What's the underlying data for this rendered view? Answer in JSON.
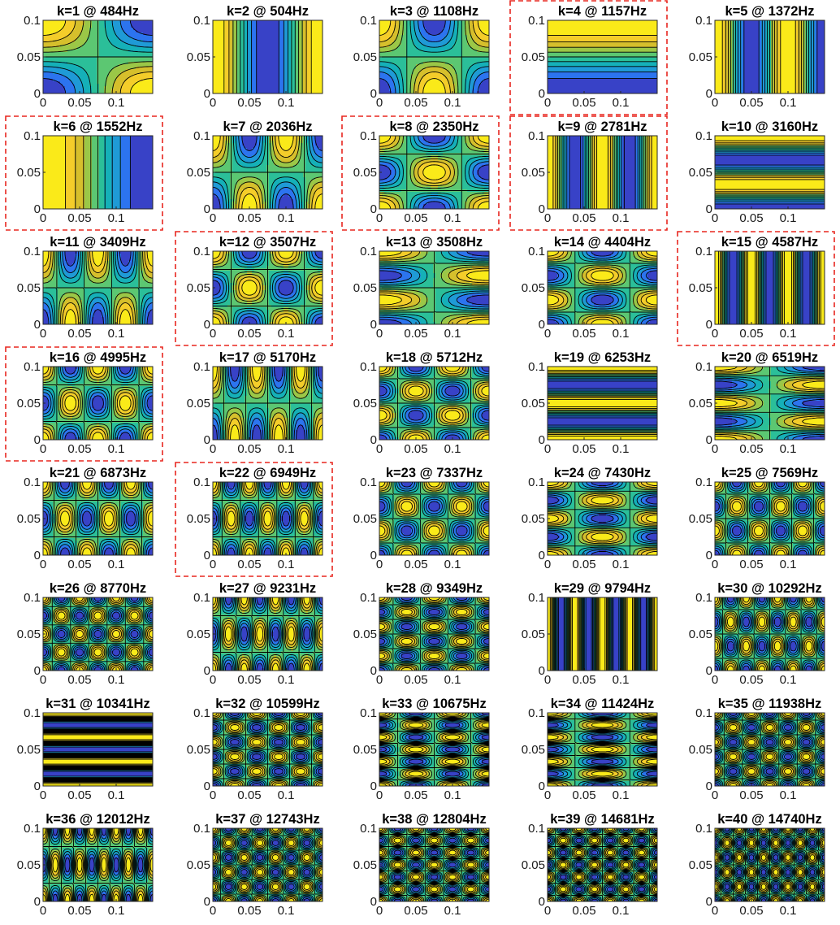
{
  "figure": {
    "colormap": [
      "#3e26a8",
      "#2f6bf5",
      "#1f9ad6",
      "#12b6b0",
      "#3cc58a",
      "#8cc94e",
      "#d6bf2c",
      "#fbd02a",
      "#f9fb0e"
    ],
    "highlight_color": "#e8261f",
    "contour_line_color": "#000000"
  },
  "chart_data": [
    {
      "type": "heatmap",
      "title": "k=1 @ 484Hz",
      "k": 1,
      "freq_hz": 484,
      "highlighted": false,
      "xlim": [
        0,
        0.15
      ],
      "ylim": [
        0,
        0.1
      ],
      "x_ticks": [
        "0",
        "0.05",
        "0.1"
      ],
      "y_ticks": [
        "0",
        "0.05",
        "0.1"
      ],
      "mode": [
        1,
        1
      ]
    },
    {
      "type": "heatmap",
      "title": "k=2 @ 504Hz",
      "k": 2,
      "freq_hz": 504,
      "highlighted": false,
      "xlim": [
        0,
        0.15
      ],
      "ylim": [
        0,
        0.1
      ],
      "x_ticks": [
        "0",
        "0.05",
        "0.1"
      ],
      "y_ticks": [
        "0",
        "0.05",
        "0.1"
      ],
      "mode": [
        2,
        0
      ]
    },
    {
      "type": "heatmap",
      "title": "k=3 @ 1108Hz",
      "k": 3,
      "freq_hz": 1108,
      "highlighted": false,
      "xlim": [
        0,
        0.15
      ],
      "ylim": [
        0,
        0.1
      ],
      "x_ticks": [
        "0",
        "0.05",
        "0.1"
      ],
      "y_ticks": [
        "0",
        "0.05",
        "0.1"
      ],
      "mode": [
        2,
        1
      ]
    },
    {
      "type": "heatmap",
      "title": "k=4 @ 1157Hz",
      "k": 4,
      "freq_hz": 1157,
      "highlighted": true,
      "xlim": [
        0,
        0.15
      ],
      "ylim": [
        0,
        0.1
      ],
      "x_ticks": [
        "0",
        "0.05",
        "0.1"
      ],
      "y_ticks": [
        "0",
        "0.05",
        "0.1"
      ],
      "mode": [
        0,
        1
      ]
    },
    {
      "type": "heatmap",
      "title": "k=5 @ 1372Hz",
      "k": 5,
      "freq_hz": 1372,
      "highlighted": false,
      "xlim": [
        0,
        0.15
      ],
      "ylim": [
        0,
        0.1
      ],
      "x_ticks": [
        "0",
        "0.05",
        "0.1"
      ],
      "y_ticks": [
        "0",
        "0.05",
        "0.1"
      ],
      "mode": [
        3,
        0
      ]
    },
    {
      "type": "heatmap",
      "title": "k=6 @ 1552Hz",
      "k": 6,
      "freq_hz": 1552,
      "highlighted": true,
      "xlim": [
        0,
        0.15
      ],
      "ylim": [
        0,
        0.1
      ],
      "x_ticks": [
        "0",
        "0.05",
        "0.1"
      ],
      "y_ticks": [
        "0",
        "0.05",
        "0.1"
      ],
      "mode": [
        1,
        0
      ]
    },
    {
      "type": "heatmap",
      "title": "k=7 @ 2036Hz",
      "k": 7,
      "freq_hz": 2036,
      "highlighted": false,
      "xlim": [
        0,
        0.15
      ],
      "ylim": [
        0,
        0.1
      ],
      "x_ticks": [
        "0",
        "0.05",
        "0.1"
      ],
      "y_ticks": [
        "0",
        "0.05",
        "0.1"
      ],
      "mode": [
        3,
        1
      ]
    },
    {
      "type": "heatmap",
      "title": "k=8 @ 2350Hz",
      "k": 8,
      "freq_hz": 2350,
      "highlighted": true,
      "xlim": [
        0,
        0.15
      ],
      "ylim": [
        0,
        0.1
      ],
      "x_ticks": [
        "0",
        "0.05",
        "0.1"
      ],
      "y_ticks": [
        "0",
        "0.05",
        "0.1"
      ],
      "mode": [
        2,
        2
      ]
    },
    {
      "type": "heatmap",
      "title": "k=9 @ 2781Hz",
      "k": 9,
      "freq_hz": 2781,
      "highlighted": true,
      "xlim": [
        0,
        0.15
      ],
      "ylim": [
        0,
        0.1
      ],
      "x_ticks": [
        "0",
        "0.05",
        "0.1"
      ],
      "y_ticks": [
        "0",
        "0.05",
        "0.1"
      ],
      "mode": [
        4,
        0
      ]
    },
    {
      "type": "heatmap",
      "title": "k=10 @ 3160Hz",
      "k": 10,
      "freq_hz": 3160,
      "highlighted": false,
      "xlim": [
        0,
        0.15
      ],
      "ylim": [
        0,
        0.1
      ],
      "x_ticks": [
        "0",
        "0.05",
        "0.1"
      ],
      "y_ticks": [
        "0",
        "0.05",
        "0.1"
      ],
      "mode": [
        0,
        3
      ]
    },
    {
      "type": "heatmap",
      "title": "k=11 @ 3409Hz",
      "k": 11,
      "freq_hz": 3409,
      "highlighted": false,
      "xlim": [
        0,
        0.15
      ],
      "ylim": [
        0,
        0.1
      ],
      "x_ticks": [
        "0",
        "0.05",
        "0.1"
      ],
      "y_ticks": [
        "0",
        "0.05",
        "0.1"
      ],
      "mode": [
        4,
        1
      ]
    },
    {
      "type": "heatmap",
      "title": "k=12 @ 3507Hz",
      "k": 12,
      "freq_hz": 3507,
      "highlighted": true,
      "xlim": [
        0,
        0.15
      ],
      "ylim": [
        0,
        0.1
      ],
      "x_ticks": [
        "0",
        "0.05",
        "0.1"
      ],
      "y_ticks": [
        "0",
        "0.05",
        "0.1"
      ],
      "mode": [
        3,
        2
      ]
    },
    {
      "type": "heatmap",
      "title": "k=13 @ 3508Hz",
      "k": 13,
      "freq_hz": 3508,
      "highlighted": false,
      "xlim": [
        0,
        0.15
      ],
      "ylim": [
        0,
        0.1
      ],
      "x_ticks": [
        "0",
        "0.05",
        "0.1"
      ],
      "y_ticks": [
        "0",
        "0.05",
        "0.1"
      ],
      "mode": [
        1,
        3
      ]
    },
    {
      "type": "heatmap",
      "title": "k=14 @ 4404Hz",
      "k": 14,
      "freq_hz": 4404,
      "highlighted": false,
      "xlim": [
        0,
        0.15
      ],
      "ylim": [
        0,
        0.1
      ],
      "x_ticks": [
        "0",
        "0.05",
        "0.1"
      ],
      "y_ticks": [
        "0",
        "0.05",
        "0.1"
      ],
      "mode": [
        2,
        3
      ]
    },
    {
      "type": "heatmap",
      "title": "k=15 @ 4587Hz",
      "k": 15,
      "freq_hz": 4587,
      "highlighted": true,
      "xlim": [
        0,
        0.15
      ],
      "ylim": [
        0,
        0.1
      ],
      "x_ticks": [
        "0",
        "0.05",
        "0.1"
      ],
      "y_ticks": [
        "0",
        "0.05",
        "0.1"
      ],
      "mode": [
        6,
        0
      ]
    },
    {
      "type": "heatmap",
      "title": "k=16 @ 4995Hz",
      "k": 16,
      "freq_hz": 4995,
      "highlighted": true,
      "xlim": [
        0,
        0.15
      ],
      "ylim": [
        0,
        0.1
      ],
      "x_ticks": [
        "0",
        "0.05",
        "0.1"
      ],
      "y_ticks": [
        "0",
        "0.05",
        "0.1"
      ],
      "mode": [
        4,
        2
      ]
    },
    {
      "type": "heatmap",
      "title": "k=17 @ 5170Hz",
      "k": 17,
      "freq_hz": 5170,
      "highlighted": false,
      "xlim": [
        0,
        0.15
      ],
      "ylim": [
        0,
        0.1
      ],
      "x_ticks": [
        "0",
        "0.05",
        "0.1"
      ],
      "y_ticks": [
        "0",
        "0.05",
        "0.1"
      ],
      "mode": [
        5,
        1
      ]
    },
    {
      "type": "heatmap",
      "title": "k=18 @ 5712Hz",
      "k": 18,
      "freq_hz": 5712,
      "highlighted": false,
      "xlim": [
        0,
        0.15
      ],
      "ylim": [
        0,
        0.1
      ],
      "x_ticks": [
        "0",
        "0.05",
        "0.1"
      ],
      "y_ticks": [
        "0",
        "0.05",
        "0.1"
      ],
      "mode": [
        3,
        3
      ]
    },
    {
      "type": "heatmap",
      "title": "k=19 @ 6253Hz",
      "k": 19,
      "freq_hz": 6253,
      "highlighted": false,
      "xlim": [
        0,
        0.15
      ],
      "ylim": [
        0,
        0.1
      ],
      "x_ticks": [
        "0",
        "0.05",
        "0.1"
      ],
      "y_ticks": [
        "0",
        "0.05",
        "0.1"
      ],
      "mode": [
        0,
        4
      ]
    },
    {
      "type": "heatmap",
      "title": "k=20 @ 6519Hz",
      "k": 20,
      "freq_hz": 6519,
      "highlighted": false,
      "xlim": [
        0,
        0.15
      ],
      "ylim": [
        0,
        0.1
      ],
      "x_ticks": [
        "0",
        "0.05",
        "0.1"
      ],
      "y_ticks": [
        "0",
        "0.05",
        "0.1"
      ],
      "mode": [
        1,
        4
      ]
    },
    {
      "type": "heatmap",
      "title": "k=21 @ 6873Hz",
      "k": 21,
      "freq_hz": 6873,
      "highlighted": false,
      "xlim": [
        0,
        0.15
      ],
      "ylim": [
        0,
        0.1
      ],
      "x_ticks": [
        "0",
        "0.05",
        "0.1"
      ],
      "y_ticks": [
        "0",
        "0.05",
        "0.1"
      ],
      "mode": [
        5,
        2
      ]
    },
    {
      "type": "heatmap",
      "title": "k=22 @ 6949Hz",
      "k": 22,
      "freq_hz": 6949,
      "highlighted": true,
      "xlim": [
        0,
        0.15
      ],
      "ylim": [
        0,
        0.1
      ],
      "x_ticks": [
        "0",
        "0.05",
        "0.1"
      ],
      "y_ticks": [
        "0",
        "0.05",
        "0.1"
      ],
      "mode": [
        6,
        2
      ]
    },
    {
      "type": "heatmap",
      "title": "k=23 @ 7337Hz",
      "k": 23,
      "freq_hz": 7337,
      "highlighted": false,
      "xlim": [
        0,
        0.15
      ],
      "ylim": [
        0,
        0.1
      ],
      "x_ticks": [
        "0",
        "0.05",
        "0.1"
      ],
      "y_ticks": [
        "0",
        "0.05",
        "0.1"
      ],
      "mode": [
        4,
        3
      ]
    },
    {
      "type": "heatmap",
      "title": "k=24 @ 7430Hz",
      "k": 24,
      "freq_hz": 7430,
      "highlighted": false,
      "xlim": [
        0,
        0.15
      ],
      "ylim": [
        0,
        0.1
      ],
      "x_ticks": [
        "0",
        "0.05",
        "0.1"
      ],
      "y_ticks": [
        "0",
        "0.05",
        "0.1"
      ],
      "mode": [
        2,
        4
      ]
    },
    {
      "type": "heatmap",
      "title": "k=25 @ 7569Hz",
      "k": 25,
      "freq_hz": 7569,
      "highlighted": false,
      "xlim": [
        0,
        0.15
      ],
      "ylim": [
        0,
        0.1
      ],
      "x_ticks": [
        "0",
        "0.05",
        "0.1"
      ],
      "y_ticks": [
        "0",
        "0.05",
        "0.1"
      ],
      "mode": [
        5,
        3
      ]
    },
    {
      "type": "heatmap",
      "title": "k=26 @ 8770Hz",
      "k": 26,
      "freq_hz": 8770,
      "highlighted": false,
      "xlim": [
        0,
        0.15
      ],
      "ylim": [
        0,
        0.1
      ],
      "x_ticks": [
        "0",
        "0.05",
        "0.1"
      ],
      "y_ticks": [
        "0",
        "0.05",
        "0.1"
      ],
      "mode": [
        6,
        4
      ]
    },
    {
      "type": "heatmap",
      "title": "k=27 @ 9231Hz",
      "k": 27,
      "freq_hz": 9231,
      "highlighted": false,
      "xlim": [
        0,
        0.15
      ],
      "ylim": [
        0,
        0.1
      ],
      "x_ticks": [
        "0",
        "0.05",
        "0.1"
      ],
      "y_ticks": [
        "0",
        "0.05",
        "0.1"
      ],
      "mode": [
        7,
        2
      ]
    },
    {
      "type": "heatmap",
      "title": "k=28 @ 9349Hz",
      "k": 28,
      "freq_hz": 9349,
      "highlighted": false,
      "xlim": [
        0,
        0.15
      ],
      "ylim": [
        0,
        0.1
      ],
      "x_ticks": [
        "0",
        "0.05",
        "0.1"
      ],
      "y_ticks": [
        "0",
        "0.05",
        "0.1"
      ],
      "mode": [
        4,
        5
      ]
    },
    {
      "type": "heatmap",
      "title": "k=29 @ 9794Hz",
      "k": 29,
      "freq_hz": 9794,
      "highlighted": false,
      "xlim": [
        0,
        0.15
      ],
      "ylim": [
        0,
        0.1
      ],
      "x_ticks": [
        "0",
        "0.05",
        "0.1"
      ],
      "y_ticks": [
        "0",
        "0.05",
        "0.1"
      ],
      "mode": [
        8,
        0
      ]
    },
    {
      "type": "heatmap",
      "title": "k=30 @ 10292Hz",
      "k": 30,
      "freq_hz": 10292,
      "highlighted": false,
      "xlim": [
        0,
        0.15
      ],
      "ylim": [
        0,
        0.1
      ],
      "x_ticks": [
        "0",
        "0.05",
        "0.1"
      ],
      "y_ticks": [
        "0",
        "0.05",
        "0.1"
      ],
      "mode": [
        7,
        3
      ]
    },
    {
      "type": "heatmap",
      "title": "k=31 @ 10341Hz",
      "k": 31,
      "freq_hz": 10341,
      "highlighted": false,
      "xlim": [
        0,
        0.15
      ],
      "ylim": [
        0,
        0.1
      ],
      "x_ticks": [
        "0",
        "0.05",
        "0.1"
      ],
      "y_ticks": [
        "0",
        "0.05",
        "0.1"
      ],
      "mode": [
        0,
        6
      ]
    },
    {
      "type": "heatmap",
      "title": "k=32 @ 10599Hz",
      "k": 32,
      "freq_hz": 10599,
      "highlighted": false,
      "xlim": [
        0,
        0.15
      ],
      "ylim": [
        0,
        0.1
      ],
      "x_ticks": [
        "0",
        "0.05",
        "0.1"
      ],
      "y_ticks": [
        "0",
        "0.05",
        "0.1"
      ],
      "mode": [
        5,
        5
      ]
    },
    {
      "type": "heatmap",
      "title": "k=33 @ 10675Hz",
      "k": 33,
      "freq_hz": 10675,
      "highlighted": false,
      "xlim": [
        0,
        0.15
      ],
      "ylim": [
        0,
        0.1
      ],
      "x_ticks": [
        "0",
        "0.05",
        "0.1"
      ],
      "y_ticks": [
        "0",
        "0.05",
        "0.1"
      ],
      "mode": [
        3,
        6
      ]
    },
    {
      "type": "heatmap",
      "title": "k=34 @ 11424Hz",
      "k": 34,
      "freq_hz": 11424,
      "highlighted": false,
      "xlim": [
        0,
        0.15
      ],
      "ylim": [
        0,
        0.1
      ],
      "x_ticks": [
        "0",
        "0.05",
        "0.1"
      ],
      "y_ticks": [
        "0",
        "0.05",
        "0.1"
      ],
      "mode": [
        2,
        6
      ]
    },
    {
      "type": "heatmap",
      "title": "k=35 @ 11938Hz",
      "k": 35,
      "freq_hz": 11938,
      "highlighted": false,
      "xlim": [
        0,
        0.15
      ],
      "ylim": [
        0,
        0.1
      ],
      "x_ticks": [
        "0",
        "0.05",
        "0.1"
      ],
      "y_ticks": [
        "0",
        "0.05",
        "0.1"
      ],
      "mode": [
        6,
        5
      ]
    },
    {
      "type": "heatmap",
      "title": "k=36 @ 12012Hz",
      "k": 36,
      "freq_hz": 12012,
      "highlighted": false,
      "xlim": [
        0,
        0.15
      ],
      "ylim": [
        0,
        0.1
      ],
      "x_ticks": [
        "0",
        "0.05",
        "0.1"
      ],
      "y_ticks": [
        "0",
        "0.05",
        "0.1"
      ],
      "mode": [
        9,
        2
      ]
    },
    {
      "type": "heatmap",
      "title": "k=37 @ 12743Hz",
      "k": 37,
      "freq_hz": 12743,
      "highlighted": false,
      "xlim": [
        0,
        0.15
      ],
      "ylim": [
        0,
        0.1
      ],
      "x_ticks": [
        "0",
        "0.05",
        "0.1"
      ],
      "y_ticks": [
        "0",
        "0.05",
        "0.1"
      ],
      "mode": [
        7,
        5
      ]
    },
    {
      "type": "heatmap",
      "title": "k=38 @ 12804Hz",
      "k": 38,
      "freq_hz": 12804,
      "highlighted": false,
      "xlim": [
        0,
        0.15
      ],
      "ylim": [
        0,
        0.1
      ],
      "x_ticks": [
        "0",
        "0.05",
        "0.1"
      ],
      "y_ticks": [
        "0",
        "0.05",
        "0.1"
      ],
      "mode": [
        6,
        6
      ]
    },
    {
      "type": "heatmap",
      "title": "k=39 @ 14681Hz",
      "k": 39,
      "freq_hz": 14681,
      "highlighted": false,
      "xlim": [
        0,
        0.15
      ],
      "ylim": [
        0,
        0.1
      ],
      "x_ticks": [
        "0",
        "0.05",
        "0.1"
      ],
      "y_ticks": [
        "0",
        "0.05",
        "0.1"
      ],
      "mode": [
        7,
        6
      ]
    },
    {
      "type": "heatmap",
      "title": "k=40 @ 14740Hz",
      "k": 40,
      "freq_hz": 14740,
      "highlighted": false,
      "xlim": [
        0,
        0.15
      ],
      "ylim": [
        0,
        0.1
      ],
      "x_ticks": [
        "0",
        "0.05",
        "0.1"
      ],
      "y_ticks": [
        "0",
        "0.05",
        "0.1"
      ],
      "mode": [
        9,
        5
      ]
    }
  ]
}
